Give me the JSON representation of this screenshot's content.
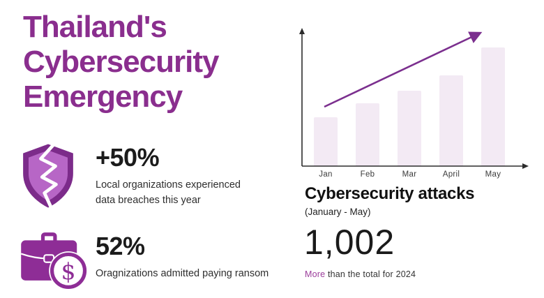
{
  "title": "Thailand's Cybersecurity Emergency",
  "colors": {
    "brand_purple": "#8A2E8E",
    "icon_purple": "#8E2D96",
    "icon_purple_dark": "#7C2B8A",
    "icon_purple_light": "#B766C6",
    "bar_fill": "#F3EAF4",
    "trend_arrow": "#7B2F8E",
    "axis": "#2b2b2b",
    "footnote_highlight_color": "#9B3D9B"
  },
  "stats": [
    {
      "icon": "broken-shield-icon",
      "value": "+50%",
      "description": "Local organizations experienced data breaches this year"
    },
    {
      "icon": "briefcase-dollar-icon",
      "value": "52%",
      "description": "Oragnizations admitted paying ransom"
    }
  ],
  "chart_data": {
    "type": "bar",
    "categories": [
      "Jan",
      "Feb",
      "Mar",
      "April",
      "May"
    ],
    "values": [
      70,
      90,
      108,
      130,
      170
    ],
    "values_note": "relative bar heights; no numeric y-axis shown in figure",
    "title": "Cybersecurity attacks",
    "subtitle": "(January - May)",
    "xlabel": "",
    "ylabel": "",
    "legend": false,
    "grid": false,
    "annotations": [
      "upward purple trend arrow from Jan to May"
    ]
  },
  "summary": {
    "total": "1,002",
    "footnote_highlight": "More",
    "footnote_rest": " than the total for 2024"
  }
}
